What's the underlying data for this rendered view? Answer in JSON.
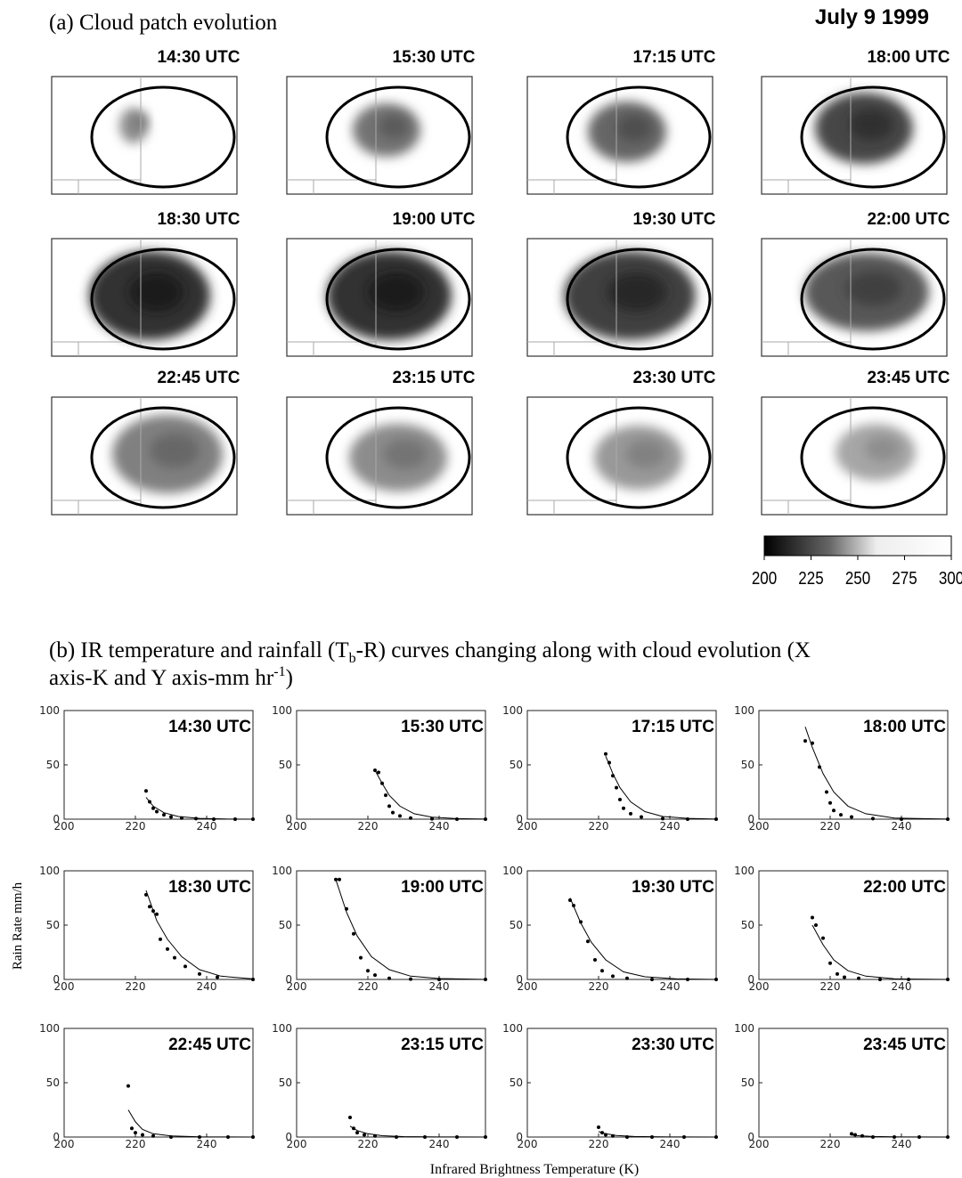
{
  "figure_a": {
    "title": "(a) Cloud patch evolution",
    "date": "July 9 1999",
    "panels": [
      "14:30 UTC",
      "15:30 UTC",
      "17:15 UTC",
      "18:00 UTC",
      "18:30 UTC",
      "19:00 UTC",
      "19:30 UTC",
      "22:00 UTC",
      "22:45 UTC",
      "23:15 UTC",
      "23:30 UTC",
      "23:45 UTC"
    ],
    "colorbar": {
      "lim": [
        200,
        300
      ],
      "ticks": [
        200,
        225,
        250,
        275,
        300
      ]
    }
  },
  "figure_b": {
    "title_parts": [
      "(b) IR temperature and rainfall (T",
      "b",
      "-R) curves changing along with cloud evolution (X",
      "axis-K and Y axis-mm hr",
      "-1",
      ")"
    ],
    "ylabel": "Rain Rate mm/h",
    "xlabel": "Infrared Brightness Temperature (K)"
  },
  "chart_data": [
    {
      "type": "scatter",
      "title": "14:30 UTC",
      "xlim": [
        200,
        253
      ],
      "ylim": [
        0,
        100
      ],
      "xticks": [
        200,
        220,
        240
      ],
      "yticks": [
        0,
        50,
        100
      ],
      "points": {
        "x": [
          223,
          224,
          225,
          226,
          228,
          230,
          233,
          237,
          242,
          248,
          253
        ],
        "y": [
          26,
          16,
          10,
          7,
          4,
          2,
          1,
          0.5,
          0,
          0,
          0
        ]
      },
      "fit": {
        "x": [
          223,
          225,
          228,
          232,
          238,
          245,
          253
        ],
        "y": [
          20,
          12,
          6,
          2.5,
          0.7,
          0.2,
          0
        ]
      }
    },
    {
      "type": "scatter",
      "title": "15:30 UTC",
      "xlim": [
        200,
        253
      ],
      "ylim": [
        0,
        100
      ],
      "xticks": [
        200,
        220,
        240
      ],
      "yticks": [
        0,
        50,
        100
      ],
      "points": {
        "x": [
          222,
          223,
          224,
          225,
          226,
          227,
          229,
          232,
          238,
          245,
          253
        ],
        "y": [
          45,
          43,
          33,
          22,
          12,
          6,
          3,
          1,
          0.3,
          0,
          0
        ]
      },
      "fit": {
        "x": [
          222,
          224,
          226,
          229,
          233,
          238,
          245,
          253
        ],
        "y": [
          45,
          33,
          22,
          12,
          5,
          1.8,
          0.5,
          0.1
        ]
      }
    },
    {
      "type": "scatter",
      "title": "17:15 UTC",
      "xlim": [
        200,
        253
      ],
      "ylim": [
        0,
        100
      ],
      "xticks": [
        200,
        220,
        240
      ],
      "yticks": [
        0,
        50,
        100
      ],
      "points": {
        "x": [
          222,
          223,
          224,
          225,
          226,
          227,
          229,
          232,
          238,
          245,
          253
        ],
        "y": [
          60,
          52,
          40,
          29,
          18,
          10,
          5,
          2,
          0.5,
          0,
          0
        ]
      },
      "fit": {
        "x": [
          222,
          224,
          226,
          229,
          233,
          238,
          245,
          253
        ],
        "y": [
          58,
          42,
          29,
          16,
          7,
          2.5,
          0.7,
          0.1
        ]
      }
    },
    {
      "type": "scatter",
      "title": "18:00 UTC",
      "xlim": [
        200,
        253
      ],
      "ylim": [
        0,
        100
      ],
      "xticks": [
        200,
        220,
        240
      ],
      "yticks": [
        0,
        50,
        100
      ],
      "points": {
        "x": [
          213,
          215,
          217,
          219,
          220,
          221,
          223,
          226,
          232,
          240,
          253
        ],
        "y": [
          72,
          70,
          48,
          25,
          15,
          8,
          4,
          2,
          0.5,
          0,
          0
        ]
      },
      "fit": {
        "x": [
          213,
          215,
          218,
          221,
          225,
          230,
          238,
          253
        ],
        "y": [
          85,
          66,
          42,
          25,
          12,
          5,
          1,
          0.1
        ]
      }
    },
    {
      "type": "scatter",
      "title": "18:30 UTC",
      "xlim": [
        200,
        253
      ],
      "ylim": [
        0,
        100
      ],
      "xticks": [
        200,
        220,
        240
      ],
      "yticks": [
        0,
        50,
        100
      ],
      "points": {
        "x": [
          223,
          224,
          225,
          226,
          227,
          229,
          231,
          234,
          238,
          243,
          253
        ],
        "y": [
          78,
          67,
          63,
          60,
          37,
          28,
          20,
          12,
          5,
          2,
          0
        ]
      },
      "fit": {
        "x": [
          223,
          226,
          229,
          233,
          238,
          244,
          253
        ],
        "y": [
          82,
          54,
          37,
          21,
          9,
          3,
          0.5
        ]
      }
    },
    {
      "type": "scatter",
      "title": "19:00 UTC",
      "xlim": [
        200,
        253
      ],
      "ylim": [
        0,
        100
      ],
      "xticks": [
        200,
        220,
        240
      ],
      "yticks": [
        0,
        50,
        100
      ],
      "points": {
        "x": [
          211,
          212,
          214,
          216,
          218,
          220,
          222,
          226,
          232,
          240,
          253
        ],
        "y": [
          92,
          92,
          65,
          42,
          20,
          8,
          4,
          1,
          0.3,
          0,
          0
        ]
      },
      "fit": {
        "x": [
          211,
          214,
          217,
          221,
          226,
          232,
          240,
          253
        ],
        "y": [
          92,
          62,
          40,
          21,
          9,
          3,
          0.8,
          0
        ]
      }
    },
    {
      "type": "scatter",
      "title": "19:30 UTC",
      "xlim": [
        200,
        253
      ],
      "ylim": [
        0,
        100
      ],
      "xticks": [
        200,
        220,
        240
      ],
      "yticks": [
        0,
        50,
        100
      ],
      "points": {
        "x": [
          212,
          213,
          215,
          217,
          219,
          221,
          224,
          228,
          235,
          245,
          253
        ],
        "y": [
          73,
          68,
          53,
          35,
          18,
          8,
          3,
          1,
          0,
          0,
          0
        ]
      },
      "fit": {
        "x": [
          212,
          215,
          218,
          222,
          227,
          233,
          242,
          253
        ],
        "y": [
          75,
          52,
          34,
          18,
          7,
          2.5,
          0.5,
          0
        ]
      }
    },
    {
      "type": "scatter",
      "title": "22:00 UTC",
      "xlim": [
        200,
        253
      ],
      "ylim": [
        0,
        100
      ],
      "xticks": [
        200,
        220,
        240
      ],
      "yticks": [
        0,
        50,
        100
      ],
      "points": {
        "x": [
          215,
          216,
          218,
          220,
          222,
          224,
          228,
          234,
          242,
          253
        ],
        "y": [
          57,
          50,
          38,
          15,
          5,
          2,
          1,
          0,
          0,
          0
        ]
      },
      "fit": {
        "x": [
          215,
          218,
          221,
          225,
          230,
          238,
          253
        ],
        "y": [
          50,
          32,
          18,
          8,
          3,
          0.6,
          0
        ]
      }
    },
    {
      "type": "scatter",
      "title": "22:45 UTC",
      "xlim": [
        200,
        253
      ],
      "ylim": [
        0,
        100
      ],
      "xticks": [
        200,
        220,
        240
      ],
      "yticks": [
        0,
        50,
        100
      ],
      "points": {
        "x": [
          218,
          219,
          220,
          222,
          225,
          230,
          238,
          246,
          253
        ],
        "y": [
          47,
          8,
          4,
          2,
          1,
          0,
          0,
          0,
          0
        ]
      },
      "fit": {
        "x": [
          218,
          220,
          222,
          225,
          230,
          238,
          253
        ],
        "y": [
          25,
          14,
          7,
          3,
          1,
          0.2,
          0
        ]
      }
    },
    {
      "type": "scatter",
      "title": "23:15 UTC",
      "xlim": [
        200,
        253
      ],
      "ylim": [
        0,
        100
      ],
      "xticks": [
        200,
        220,
        240
      ],
      "yticks": [
        0,
        50,
        100
      ],
      "points": {
        "x": [
          215,
          216,
          217,
          219,
          222,
          228,
          236,
          245,
          253
        ],
        "y": [
          18,
          8,
          4,
          2,
          1,
          0,
          0,
          0,
          0
        ]
      },
      "fit": {
        "x": [
          215,
          217,
          220,
          224,
          230,
          240,
          253
        ],
        "y": [
          10,
          6,
          3,
          1.2,
          0.4,
          0.1,
          0
        ]
      }
    },
    {
      "type": "scatter",
      "title": "23:30 UTC",
      "xlim": [
        200,
        253
      ],
      "ylim": [
        0,
        100
      ],
      "xticks": [
        200,
        220,
        240
      ],
      "yticks": [
        0,
        50,
        100
      ],
      "points": {
        "x": [
          220,
          221,
          222,
          224,
          228,
          235,
          244,
          253
        ],
        "y": [
          9,
          4,
          2,
          1,
          0,
          0,
          0,
          0
        ]
      },
      "fit": {
        "x": [
          220,
          222,
          225,
          230,
          240,
          253
        ],
        "y": [
          5,
          3,
          1.5,
          0.5,
          0.1,
          0
        ]
      }
    },
    {
      "type": "scatter",
      "title": "23:45 UTC",
      "xlim": [
        200,
        253
      ],
      "ylim": [
        0,
        100
      ],
      "xticks": [
        200,
        220,
        240
      ],
      "yticks": [
        0,
        50,
        100
      ],
      "points": {
        "x": [
          226,
          227,
          229,
          232,
          238,
          245,
          253
        ],
        "y": [
          3,
          2,
          1,
          0,
          0,
          0,
          0
        ]
      },
      "fit": {
        "x": [
          226,
          228,
          232,
          240,
          253
        ],
        "y": [
          2,
          1.2,
          0.5,
          0.1,
          0
        ]
      }
    }
  ]
}
